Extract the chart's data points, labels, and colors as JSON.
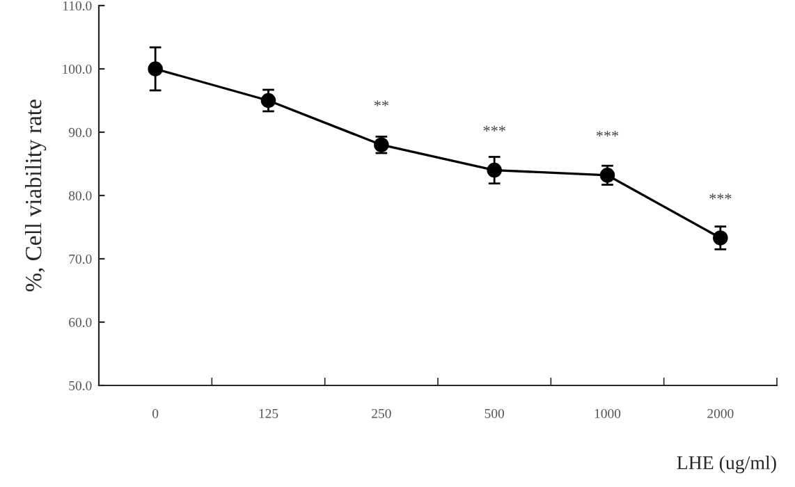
{
  "chart_data": {
    "type": "line",
    "ylabel": "%, Cell viability rate",
    "xlabel": "LHE (ug/ml)",
    "categories": [
      "0",
      "125",
      "250",
      "500",
      "1000",
      "2000"
    ],
    "series": [
      {
        "color": "#000000",
        "values": [
          100.0,
          95.0,
          88.0,
          84.0,
          83.2,
          73.3
        ],
        "errors": [
          3.4,
          1.7,
          1.3,
          2.1,
          1.5,
          1.8
        ]
      }
    ],
    "ylim": [
      50,
      110
    ],
    "yticks": [
      {
        "value": 50,
        "label": "50.0"
      },
      {
        "value": 60,
        "label": "60.0"
      },
      {
        "value": 70,
        "label": "70.0"
      },
      {
        "value": 80,
        "label": "80.0"
      },
      {
        "value": 90,
        "label": "90.0"
      },
      {
        "value": 100,
        "label": "100.0"
      },
      {
        "value": 110,
        "label": "110.0"
      }
    ],
    "marker": "circle",
    "line_style": "solid",
    "grid": false,
    "legend": false,
    "annotations": [
      {
        "text": "**",
        "x": "250",
        "y": 88.0
      },
      {
        "text": "***",
        "x": "500",
        "y": 84.0
      },
      {
        "text": "***",
        "x": "1000",
        "y": 83.2
      },
      {
        "text": "***",
        "x": "2000",
        "y": 73.3
      }
    ]
  }
}
